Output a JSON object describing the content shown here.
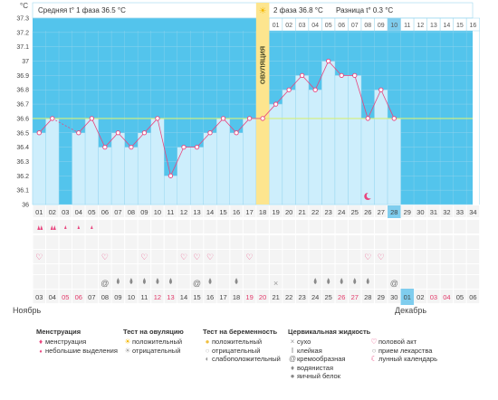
{
  "unit_label": "°C",
  "header": {
    "phase1": "Средняя t° 1 фаза 36.5 °C",
    "phase2": "2 фаза 36.8 °C",
    "diff": "Разница t° 0.3 °C"
  },
  "ovulation_label": "ОВУЛЯЦИЯ",
  "chart_data": {
    "type": "line",
    "ylim": [
      36.0,
      37.3
    ],
    "y_ticks": [
      "36",
      "36.1",
      "36.2",
      "36.3",
      "36.4",
      "36.5",
      "36.6",
      "36.7",
      "36.8",
      "36.9",
      "37",
      "37.1",
      "37.2",
      "37.3"
    ],
    "coverline": 36.6,
    "ovulation_day_index": 17,
    "top_day_labels": [
      "01",
      "02",
      "03",
      "04",
      "05",
      "06",
      "07",
      "08",
      "09",
      "10",
      "11",
      "12",
      "13",
      "14",
      "15",
      "16"
    ],
    "cycle_days": [
      "01",
      "02",
      "03",
      "04",
      "05",
      "06",
      "07",
      "08",
      "09",
      "10",
      "11",
      "12",
      "13",
      "14",
      "15",
      "16",
      "17",
      "18",
      "19",
      "20",
      "21",
      "22",
      "23",
      "24",
      "25",
      "26",
      "27",
      "28",
      "29",
      "30",
      "31",
      "32",
      "33",
      "34"
    ],
    "temperatures": [
      36.5,
      36.6,
      null,
      36.5,
      36.6,
      36.4,
      36.5,
      36.4,
      36.5,
      36.6,
      36.2,
      36.4,
      36.4,
      36.5,
      36.6,
      36.5,
      36.6,
      36.6,
      36.7,
      36.8,
      36.9,
      36.8,
      37.0,
      36.9,
      36.9,
      36.6,
      36.8,
      36.6,
      null,
      null,
      null,
      null,
      null,
      null
    ],
    "dates": [
      "03",
      "04",
      "05",
      "06",
      "07",
      "08",
      "09",
      "10",
      "11",
      "12",
      "13",
      "14",
      "15",
      "16",
      "17",
      "18",
      "19",
      "20",
      "21",
      "22",
      "23",
      "24",
      "25",
      "26",
      "27",
      "28",
      "29",
      "30",
      "01",
      "02",
      "03",
      "04",
      "05",
      "06"
    ],
    "weekend_date_indices": [
      2,
      3,
      9,
      10,
      16,
      17,
      23,
      24,
      30,
      31
    ],
    "highlight_date_index": 27,
    "month_start": "Ноябрь",
    "month_end": "Декабрь",
    "moon_day_index": 25,
    "menstruation": [
      1,
      1,
      2,
      2,
      2,
      0,
      0,
      0,
      0,
      0,
      0,
      0,
      0,
      0,
      0,
      0,
      0,
      0,
      0,
      0,
      0,
      0,
      0,
      0,
      0,
      0,
      0,
      0,
      0,
      0,
      0,
      0,
      0,
      0
    ],
    "heart_days": [
      0,
      5,
      8,
      11,
      12,
      13,
      16,
      25,
      26
    ],
    "cervical": [
      null,
      null,
      null,
      null,
      null,
      "spiral",
      "drop",
      "drop",
      "drop",
      "drop",
      "drop",
      null,
      "spiral",
      "drop",
      null,
      "drop",
      null,
      null,
      "x",
      null,
      null,
      "drop",
      "drop",
      "drop",
      "drop",
      "drop",
      null,
      "spiral",
      null,
      null,
      null,
      null,
      null,
      null
    ]
  },
  "legend": {
    "menstruation": {
      "title": "Менструация",
      "items": [
        "менструация",
        "небольшие выделения"
      ]
    },
    "ovulation_test": {
      "title": "Тест на овуляцию",
      "items": [
        "положительный",
        "отрицательный"
      ]
    },
    "pregnancy_test": {
      "title": "Тест на беременность",
      "items": [
        "положительный",
        "отрицательный",
        "слабоположительный"
      ]
    },
    "cervical": {
      "title": "Цервикальная жидкость",
      "items": [
        "сухо",
        "клейкая",
        "кремообразная",
        "водянистая",
        "яичный белок"
      ]
    },
    "other": {
      "items": [
        "половой акт",
        "прием лекарства",
        "лунный календарь"
      ]
    }
  },
  "colors": {
    "sky": "#53c4ec",
    "bar": "#cdeefc",
    "bar_border": "#8fd2ee",
    "line": "#e8457e",
    "coverline": "#d6f07a",
    "ovulation": "#fde58e",
    "highlight": "#7fcdee",
    "weekend_text": "#e23a6a"
  }
}
